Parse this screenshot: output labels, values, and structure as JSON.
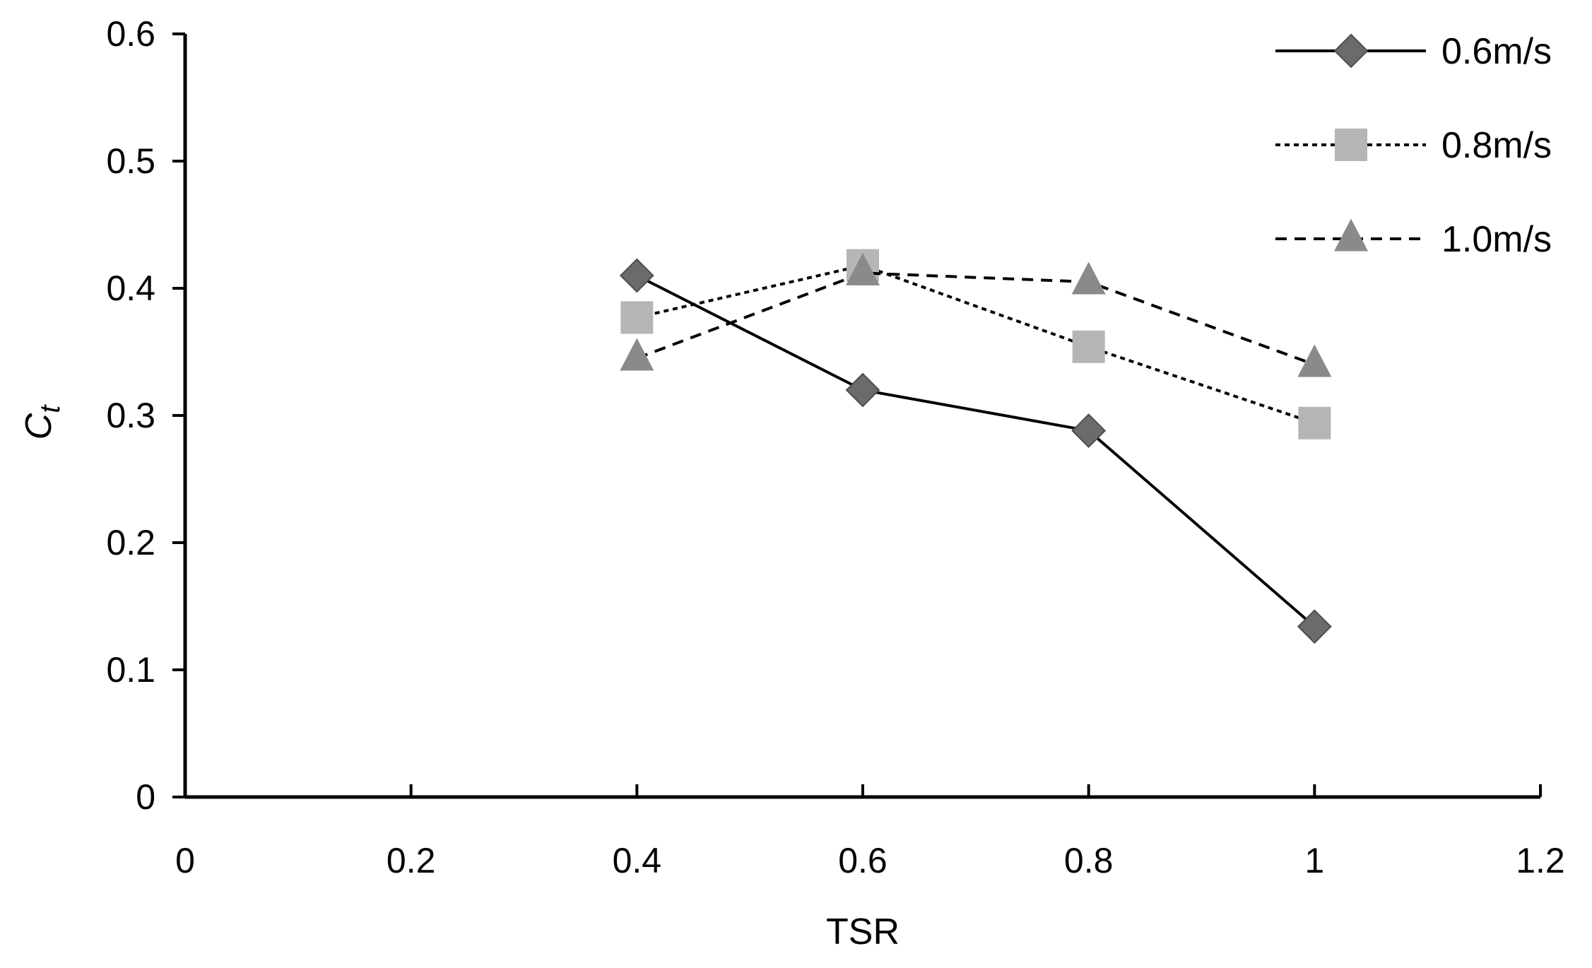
{
  "chart_data": {
    "type": "line",
    "xlabel": "TSR",
    "ylabel_main": "C",
    "ylabel_sub": "t",
    "xlim": [
      0,
      1.2
    ],
    "ylim": [
      0,
      0.6
    ],
    "xticks": [
      0,
      0.2,
      0.4,
      0.6,
      0.8,
      1,
      1.2
    ],
    "xtick_labels": [
      "0",
      "0.2",
      "0.4",
      "0.6",
      "0.8",
      "1",
      "1.2"
    ],
    "yticks": [
      0,
      0.1,
      0.2,
      0.3,
      0.4,
      0.5,
      0.6
    ],
    "ytick_labels": [
      "0",
      "0.1",
      "0.2",
      "0.3",
      "0.4",
      "0.5",
      "0.6"
    ],
    "grid": false,
    "legend_position": "top-right",
    "series": [
      {
        "name": "0.6m/s",
        "marker": "diamond",
        "line": "solid",
        "color": "#6b6b6b",
        "x": [
          0.4,
          0.6,
          0.8,
          1.0
        ],
        "y": [
          0.41,
          0.32,
          0.288,
          0.134
        ]
      },
      {
        "name": "0.8m/s",
        "marker": "square",
        "line": "dotted",
        "color": "#b5b5b5",
        "x": [
          0.4,
          0.6,
          0.8,
          1.0
        ],
        "y": [
          0.377,
          0.418,
          0.354,
          0.294
        ]
      },
      {
        "name": "1.0m/s",
        "marker": "triangle",
        "line": "dashed",
        "color": "#8a8a8a",
        "x": [
          0.4,
          0.6,
          0.8,
          1.0
        ],
        "y": [
          0.345,
          0.412,
          0.405,
          0.34
        ]
      }
    ]
  }
}
